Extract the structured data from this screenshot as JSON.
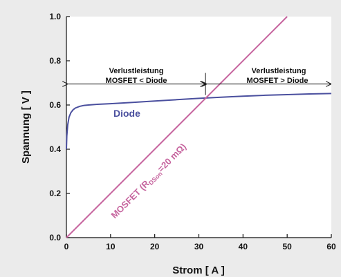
{
  "chart_data": {
    "type": "line",
    "xlabel": "Strom [ A ]",
    "ylabel": "Spannung [ V ]",
    "xlim": [
      0,
      60
    ],
    "ylim": [
      0,
      1.0
    ],
    "xticks": [
      0,
      10,
      20,
      30,
      40,
      50,
      60
    ],
    "xtick_labels": [
      "0",
      "10",
      "20",
      "30",
      "40",
      "50",
      "60"
    ],
    "yticks": [
      0,
      0.2,
      0.4,
      0.6,
      0.8,
      1.0
    ],
    "ytick_labels": [
      "0.0",
      "0.2",
      "0.4",
      "0.6",
      "0.8",
      "1.0"
    ],
    "grid": false,
    "series": [
      {
        "name": "Diode",
        "color": "#4a4f9e",
        "x": [
          0,
          0.1,
          0.3,
          0.6,
          1,
          1.5,
          2,
          3,
          4,
          5,
          7,
          10,
          15,
          20,
          25,
          30,
          35,
          40,
          45,
          50,
          55,
          60
        ],
        "y": [
          0.4,
          0.46,
          0.51,
          0.545,
          0.565,
          0.578,
          0.586,
          0.594,
          0.598,
          0.6,
          0.603,
          0.606,
          0.612,
          0.618,
          0.624,
          0.63,
          0.635,
          0.64,
          0.644,
          0.647,
          0.65,
          0.652
        ]
      },
      {
        "name_text": "MOSFET (R",
        "name_sub": "DSon",
        "name_tail": "=20 mΩ)",
        "color": "#c6649e",
        "x": [
          0,
          50
        ],
        "y": [
          0,
          1.0
        ]
      }
    ],
    "annotations": {
      "left_line1": "Verlustleistung",
      "left_line2": "MOSFET < Diode",
      "right_line1": "Verlustleistung",
      "right_line2": "MOSFET > Diode",
      "divider_x": 31.5,
      "arrow_y": 0.695
    }
  }
}
